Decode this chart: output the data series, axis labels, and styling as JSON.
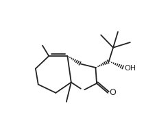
{
  "background_color": "#ffffff",
  "line_color": "#222222",
  "line_width": 1.3,
  "fig_width": 2.29,
  "fig_height": 1.83,
  "dpi": 100,
  "oh_label": "OH",
  "o_label": "O"
}
